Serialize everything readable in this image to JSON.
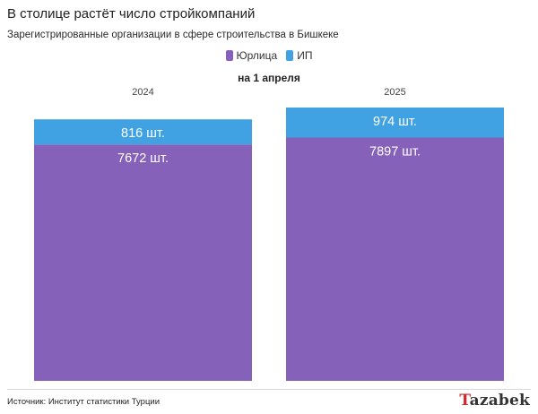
{
  "header": {
    "title": "В столице растёт число стройкомпаний",
    "subtitle": "Зарегистрированные организации в сфере строительства в Бишкеке"
  },
  "footer": {
    "source": "Источник: Институт статистики Турции",
    "logo_accent": "T",
    "logo_rest": "azabek"
  },
  "colors": {
    "legal_entities": "#8561ba",
    "individual_entrepreneurs": "#40a2e3"
  },
  "chart_data": {
    "type": "bar",
    "stacked": true,
    "categories": [
      "2024",
      "2025"
    ],
    "axis_title": "на 1 апреля",
    "series": [
      {
        "name": "Юрлица",
        "values": [
          7672,
          7897
        ],
        "labels": [
          "7672 шт.",
          "7897 шт."
        ],
        "color": "#8561ba"
      },
      {
        "name": "ИП",
        "values": [
          816,
          974
        ],
        "labels": [
          "816 шт.",
          "974 шт."
        ],
        "color": "#40a2e3"
      }
    ],
    "legend_position": "top-center",
    "ylim": [
      0,
      8871
    ],
    "grid": false
  }
}
